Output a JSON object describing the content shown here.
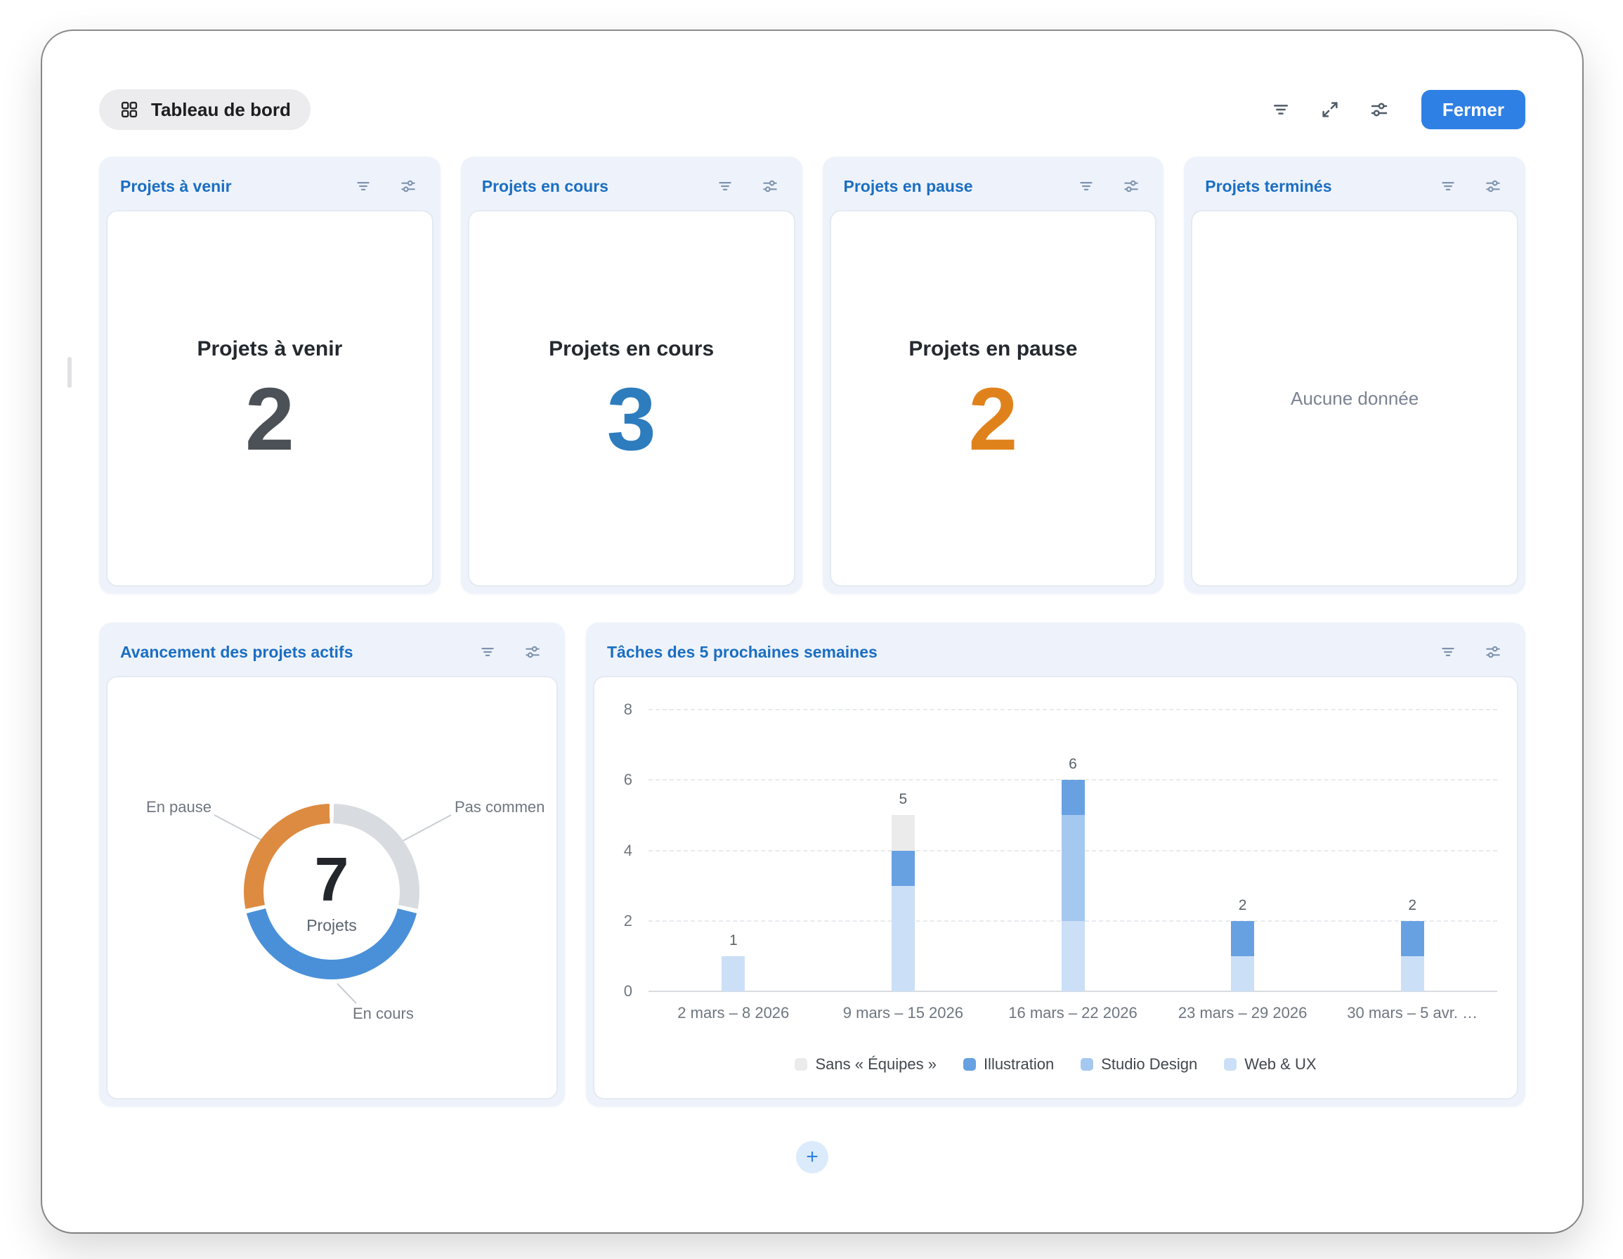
{
  "topbar": {
    "dashboard_pill": "Tableau de bord",
    "close_button": "Fermer",
    "icons": [
      "filter-icon",
      "expand-icon",
      "customize-icon"
    ],
    "accent_blue": "#2f80e5"
  },
  "widget_header_icons": [
    "filter-icon",
    "customize-icon"
  ],
  "stat_cards": [
    {
      "title": "Projets à venir",
      "value": "2",
      "value_color": "#4c5157"
    },
    {
      "title": "Projets en cours",
      "value": "3",
      "value_color": "#2d7cbe"
    },
    {
      "title": "Projets en pause",
      "value": "2",
      "value_color": "#e0821c"
    },
    {
      "title": "Projets terminés",
      "empty_text": "Aucune donnée"
    }
  ],
  "bottom_cards": {
    "donut_title": "Avancement des projets actifs",
    "bar_title": "Tâches des 5 prochaines semaines"
  },
  "add_button_label": "+",
  "chart_data": [
    {
      "type": "pie",
      "donut": true,
      "title": "Avancement des projets actifs",
      "center_value": "7",
      "center_label": "Projets",
      "direction": "clockwise",
      "start_angle_deg": 0,
      "slices": [
        {
          "label": "Pas commencé",
          "label_displayed": "Pas commen",
          "value": 2,
          "color": "#d8dbdf"
        },
        {
          "label": "En cours",
          "label_displayed": "En cours",
          "value": 3,
          "color": "#4a90d9"
        },
        {
          "label": "En pause",
          "label_displayed": "En pause",
          "value": 2,
          "color": "#dd8b41"
        }
      ]
    },
    {
      "type": "bar",
      "stacked": true,
      "title": "Tâches des 5 prochaines semaines",
      "categories": [
        "2 mars – 8 2026",
        "9 mars – 15 2026",
        "16 mars – 22 2026",
        "23 mars – 29 2026",
        "30 mars – 5 avr. …"
      ],
      "series": [
        {
          "name": "Sans « Équipes »",
          "color": "#ebebeb",
          "values": [
            0,
            1,
            0,
            0,
            0
          ]
        },
        {
          "name": "Illustration",
          "color": "#67a1e2",
          "values": [
            0,
            1,
            1,
            1,
            1
          ]
        },
        {
          "name": "Studio Design",
          "color": "#a5c8f0",
          "values": [
            0,
            0,
            3,
            0,
            0
          ]
        },
        {
          "name": "Web & UX",
          "color": "#cbdff7",
          "values": [
            1,
            3,
            2,
            1,
            1
          ]
        }
      ],
      "stack_bottom_to_top": [
        "Web & UX",
        "Studio Design",
        "Illustration",
        "Sans « Équipes »"
      ],
      "totals": [
        1,
        5,
        6,
        2,
        2
      ],
      "ylim": [
        0,
        8
      ],
      "yticks": [
        0,
        2,
        4,
        6,
        8
      ],
      "grid": "horizontal-dashed",
      "legend_position": "bottom"
    }
  ]
}
